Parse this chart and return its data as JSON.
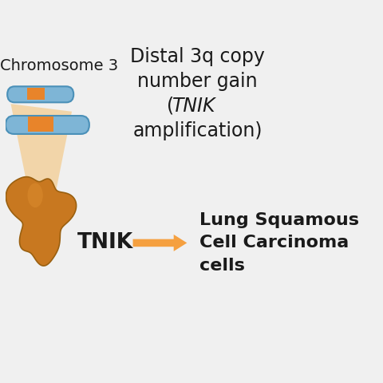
{
  "bg_color": "#f0f0f0",
  "chr_label": "Chromosome 3",
  "distal_line1": "Distal 3q copy",
  "distal_line2": "number gain",
  "distal_line3_pre": "(",
  "distal_line3_tnik": "TNIK",
  "distal_line4": "amplification)",
  "tnik_label": "TNIK",
  "outcome_line1": "Lung Squamous",
  "outcome_line2": "Cell Carcinoma",
  "outcome_line3": "cells",
  "arrow_color": "#F5A040",
  "chr_main_color": "#7EB5D6",
  "chr_band_color": "#E8842A",
  "chr_edge_color": "#4A90B8",
  "lung_color": "#C87820",
  "lung_highlight": "#E09030",
  "glow_color": "#F5C070",
  "text_color": "#1a1a1a",
  "label_fontsize": 17,
  "bold_fontsize": 19
}
